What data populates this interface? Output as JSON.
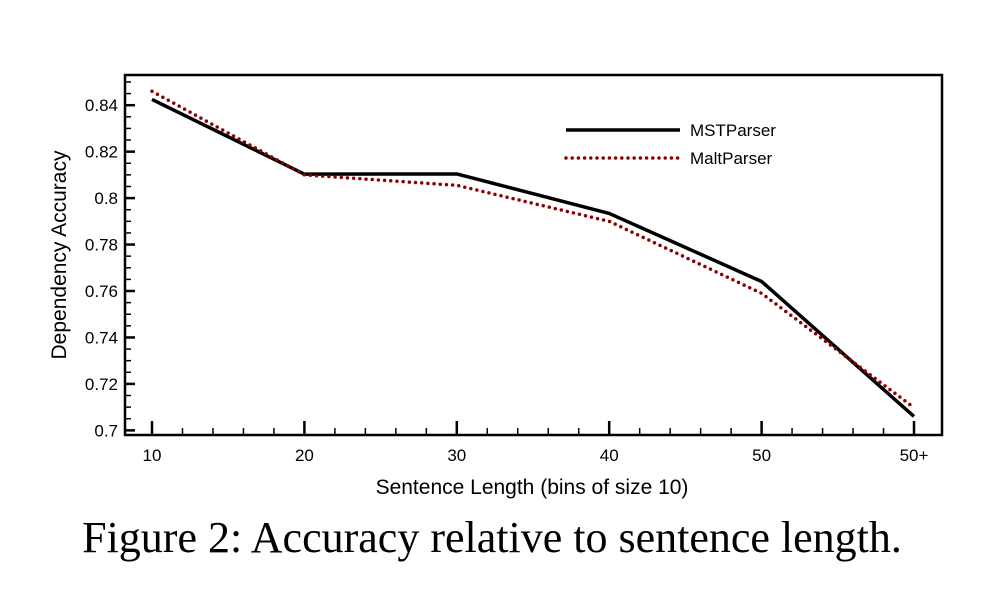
{
  "chart_data": {
    "type": "line",
    "title": "",
    "xlabel": "Sentence Length (bins of size 10)",
    "ylabel": "Dependency Accuracy",
    "categories": [
      "10",
      "20",
      "30",
      "40",
      "50",
      "50+"
    ],
    "yticks": [
      "0.7",
      "0.72",
      "0.74",
      "0.76",
      "0.78",
      "0.8",
      "0.82",
      "0.84"
    ],
    "ytick_values": [
      0.7,
      0.72,
      0.74,
      0.76,
      0.78,
      0.8,
      0.82,
      0.84
    ],
    "ylim": [
      0.698,
      0.853
    ],
    "grid": false,
    "legend_position": "top-right",
    "series": [
      {
        "name": "MSTParser",
        "style": "solid",
        "color": "#000000",
        "values": [
          0.8425,
          0.8103,
          0.8104,
          0.7934,
          0.7641,
          0.706
        ]
      },
      {
        "name": "MaltParser",
        "style": "dotted",
        "color": "#8b0000",
        "values": [
          0.846,
          0.81,
          0.8055,
          0.79,
          0.759,
          0.7098
        ]
      }
    ]
  },
  "caption": "Figure 2: Accuracy relative to sentence length."
}
